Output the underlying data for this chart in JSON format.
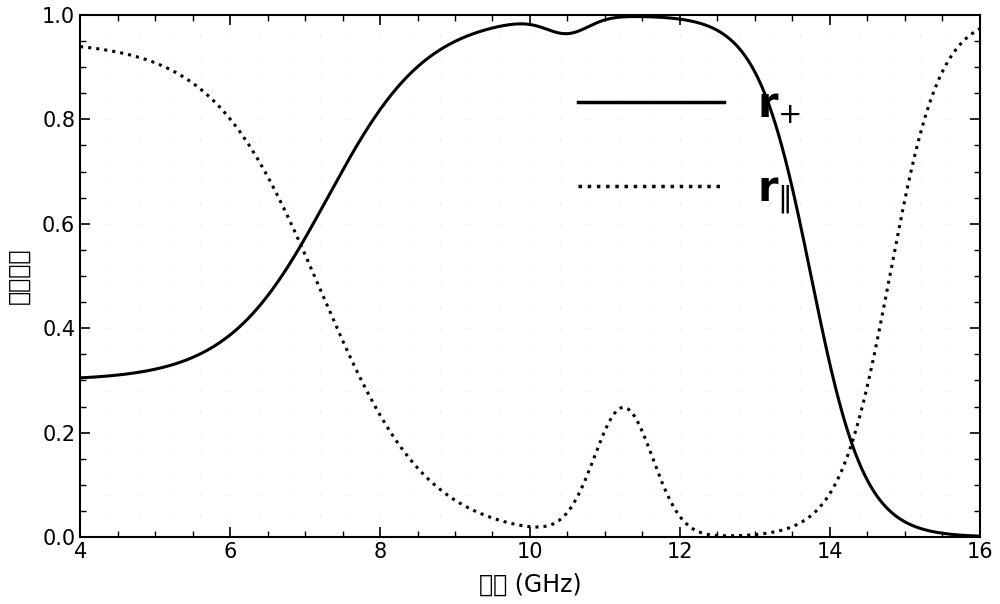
{
  "xlim": [
    4,
    16
  ],
  "ylim": [
    0,
    1.0
  ],
  "xticks": [
    4,
    6,
    8,
    10,
    12,
    14,
    16
  ],
  "yticks": [
    0.0,
    0.2,
    0.4,
    0.6,
    0.8,
    1.0
  ],
  "xlabel": "频率 (GHz)",
  "ylabel": "反射系数",
  "bg_color": "#ffffff",
  "line_color": "#000000"
}
